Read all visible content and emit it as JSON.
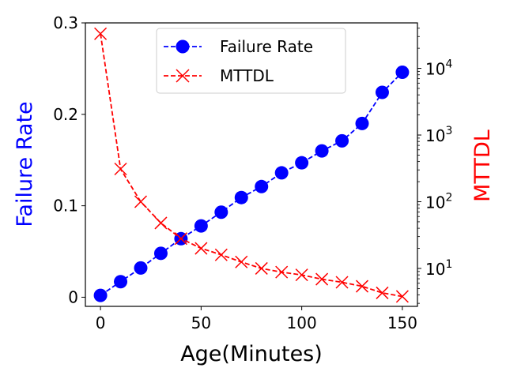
{
  "chart_data": {
    "type": "line",
    "x": [
      0,
      10,
      20,
      30,
      40,
      50,
      60,
      70,
      80,
      90,
      100,
      110,
      120,
      130,
      140,
      150
    ],
    "xlabel": "Age(Minutes)",
    "xlim": [
      -7.5,
      157.5
    ],
    "xticks": [
      0,
      50,
      100,
      150
    ],
    "series": [
      {
        "name": "Failure Rate",
        "axis": "left",
        "color": "#0000ff",
        "linestyle": "dashed",
        "marker": "circle",
        "values": [
          0.002,
          0.017,
          0.032,
          0.048,
          0.064,
          0.078,
          0.093,
          0.109,
          0.121,
          0.136,
          0.147,
          0.16,
          0.171,
          0.19,
          0.224,
          0.246
        ]
      },
      {
        "name": "MTTDL",
        "axis": "right",
        "color": "#ff0000",
        "linestyle": "dashed",
        "marker": "x",
        "values": [
          33000,
          310,
          100,
          48,
          28,
          20,
          16,
          12.5,
          10,
          8.8,
          8,
          6.9,
          6.2,
          5.4,
          4.3,
          3.8
        ]
      }
    ],
    "left_axis": {
      "label": "Failure Rate",
      "color": "#0000ff",
      "ylim": [
        -0.01,
        0.3
      ],
      "ticks": [
        {
          "value": 0,
          "label": "0"
        },
        {
          "value": 0.1,
          "label": "0.1"
        },
        {
          "value": 0.2,
          "label": "0.2"
        },
        {
          "value": 0.3,
          "label": "0.3"
        }
      ]
    },
    "right_axis": {
      "label": "MTTDL",
      "color": "#ff0000",
      "scale": "log",
      "ylim": [
        2.7,
        48000
      ],
      "ticks": [
        {
          "value": 10,
          "base": "10",
          "exp": "1"
        },
        {
          "value": 100,
          "base": "10",
          "exp": "2"
        },
        {
          "value": 1000,
          "base": "10",
          "exp": "3"
        },
        {
          "value": 10000,
          "base": "10",
          "exp": "4"
        }
      ]
    },
    "legend": {
      "placement": "upper center",
      "entries": [
        "Failure Rate",
        "MTTDL"
      ]
    }
  }
}
